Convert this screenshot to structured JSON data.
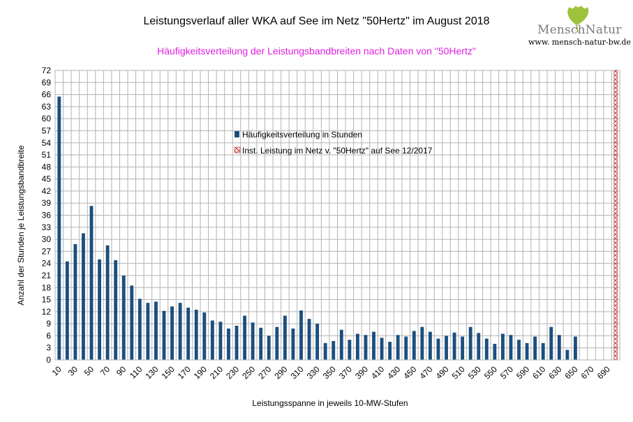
{
  "header": {
    "title": "Leistungsverlauf aller WKA auf See im Netz \"50Hertz\" im August 2018",
    "subtitle": "Häufigkeitsverteilung der Leistungsbandbreiten nach Daten von \"50Hertz\""
  },
  "logo": {
    "wordmark": "MenschNatur",
    "url": "www. mensch-natur-bw.de",
    "leaf_color": "#9cc33b"
  },
  "chart_data": {
    "type": "bar",
    "title": "Leistungsverlauf aller WKA auf See im Netz \"50Hertz\" im August 2018",
    "subtitle": "Häufigkeitsverteilung der Leistungsbandbreiten nach Daten von \"50Hertz\"",
    "xlabel": "Leistungsspanne in jeweils 10-MW-Stufen",
    "ylabel": "Anzahl der Stunden je Leistungsbandbreite",
    "ylim": [
      0,
      72
    ],
    "yticks": [
      0,
      3,
      6,
      9,
      12,
      15,
      18,
      21,
      24,
      27,
      30,
      33,
      36,
      39,
      42,
      45,
      48,
      51,
      54,
      57,
      60,
      63,
      66,
      69,
      72
    ],
    "xticks": [
      10,
      30,
      50,
      70,
      90,
      110,
      130,
      150,
      170,
      190,
      210,
      230,
      250,
      270,
      290,
      310,
      330,
      350,
      370,
      390,
      410,
      430,
      450,
      470,
      490,
      510,
      530,
      550,
      570,
      590,
      610,
      630,
      650,
      670,
      690
    ],
    "categories": [
      10,
      20,
      30,
      40,
      50,
      60,
      70,
      80,
      90,
      100,
      110,
      120,
      130,
      140,
      150,
      160,
      170,
      180,
      190,
      200,
      210,
      220,
      230,
      240,
      250,
      260,
      270,
      280,
      290,
      300,
      310,
      320,
      330,
      340,
      350,
      360,
      370,
      380,
      390,
      400,
      410,
      420,
      430,
      440,
      450,
      460,
      470,
      480,
      490,
      500,
      510,
      520,
      530,
      540,
      550,
      560,
      570,
      580,
      590,
      600,
      610,
      620,
      630,
      640,
      650,
      660,
      670,
      680,
      690,
      700
    ],
    "series": [
      {
        "name": "Häufigkeitsverteilung in Stunden",
        "color": "#1b4f7f",
        "values": [
          65.5,
          24.5,
          28.8,
          31.5,
          38.3,
          25,
          28.5,
          24.8,
          21,
          18.5,
          15.2,
          14.2,
          14.5,
          12.2,
          13.3,
          14.2,
          13,
          12.5,
          11.8,
          9.8,
          9.5,
          7.8,
          8.5,
          11,
          9.3,
          8,
          6,
          8.2,
          11,
          7.8,
          12.3,
          10.2,
          9,
          4.2,
          4.7,
          7.5,
          5,
          6.5,
          6.2,
          7,
          5.5,
          4.5,
          6.2,
          5.8,
          7.2,
          8.2,
          7,
          5.3,
          6,
          6.8,
          5.8,
          8.2,
          6.7,
          5.3,
          4,
          6.5,
          6.2,
          5,
          4.2,
          5.8,
          4.2,
          8.2,
          6.2,
          2.5,
          5.8,
          0,
          0,
          0,
          0,
          0
        ]
      },
      {
        "name": "Inst. Leistung im Netz v. \"50Hertz\" auf See 12/2017",
        "color": "#c0282b",
        "pattern": "crosshatch",
        "x": 700,
        "full_height": true
      }
    ],
    "grid": true,
    "legend_position": "center-top"
  }
}
